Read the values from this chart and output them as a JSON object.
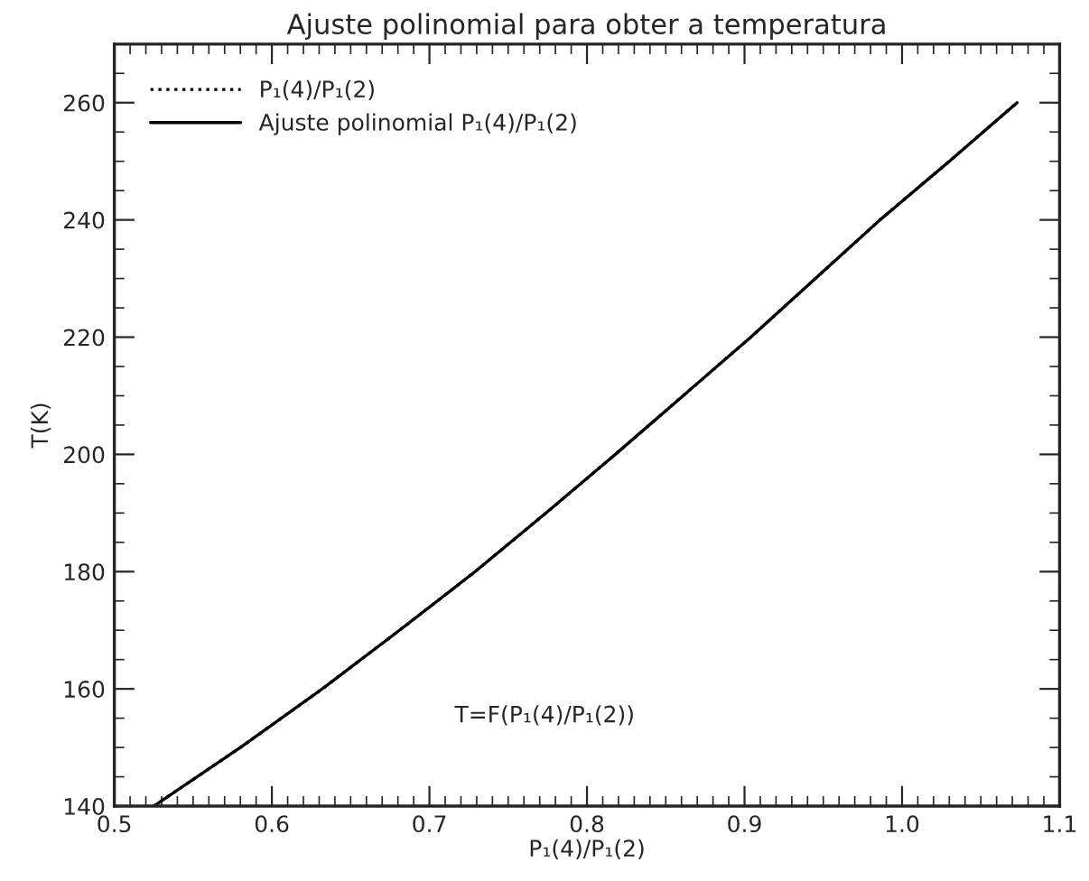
{
  "chart_data": {
    "type": "line",
    "title": "Ajuste polinomial para obter a temperatura",
    "xlabel": "P₁(4)/P₁(2)",
    "ylabel": "T(K)",
    "x": [
      0.525,
      0.58,
      0.632,
      0.681,
      0.729,
      0.774,
      0.818,
      0.861,
      0.904,
      0.945,
      0.986,
      1.03,
      1.073
    ],
    "series": [
      {
        "name": "P₁(4)/P₁(2)",
        "color": "#000000",
        "line_style": "dotted",
        "values": [
          140,
          150,
          160,
          170,
          180,
          190,
          200,
          210,
          220,
          230,
          240,
          250,
          260
        ]
      },
      {
        "name": "Ajuste polinomial P₁(4)/P₁(2)",
        "color": "#000000",
        "line_style": "solid",
        "values": [
          140,
          150,
          160,
          170,
          180,
          190,
          200,
          210,
          220,
          230,
          240,
          250,
          260
        ]
      }
    ],
    "xlim": [
      0.5,
      1.1
    ],
    "ylim": [
      140,
      270
    ],
    "xticks": [
      0.5,
      0.6,
      0.7,
      0.8,
      0.9,
      {
        "value": 1.0,
        "label": "1.0"
      },
      1.1
    ],
    "yticks": [
      140,
      160,
      180,
      200,
      220,
      240,
      260
    ],
    "annotations": [
      "T=F(P₁(4)/P₁(2))"
    ],
    "legend": "top left",
    "grid": false
  }
}
